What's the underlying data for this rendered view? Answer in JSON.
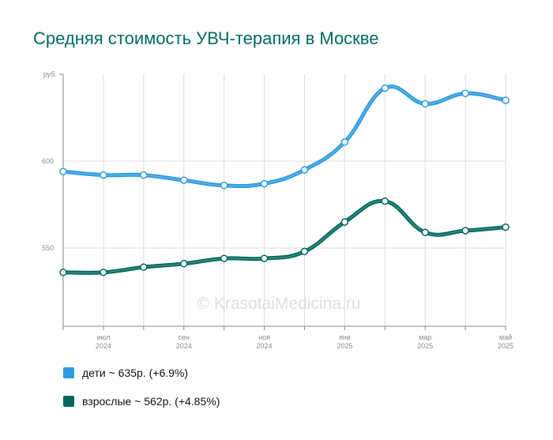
{
  "title": "Средняя стоимость УВЧ-терапия в Москве",
  "watermark": "© KrasotaiMedicina.ru",
  "chart_data": {
    "type": "line",
    "ylabel": "руб.",
    "ylim": [
      505,
      650
    ],
    "yticks": [
      600,
      550
    ],
    "grid": true,
    "legend_position": "bottom-left",
    "x_month_labels": [
      {
        "month": "июл",
        "year": "2024",
        "x": 1
      },
      {
        "month": "сен",
        "year": "2024",
        "x": 3
      },
      {
        "month": "ноя",
        "year": "2024",
        "x": 5
      },
      {
        "month": "янв",
        "year": "2025",
        "x": 7
      },
      {
        "month": "мар",
        "year": "2025",
        "x": 9
      },
      {
        "month": "май",
        "year": "2025",
        "x": 11
      }
    ],
    "x": [
      0,
      1,
      2,
      3,
      4,
      5,
      6,
      7,
      8,
      9,
      10,
      11
    ],
    "series": [
      {
        "name": "дети",
        "color": "#2d9be0",
        "values": [
          594,
          592,
          592,
          589,
          586,
          587,
          595,
          611,
          642,
          633,
          639,
          635
        ]
      },
      {
        "name": "взрослые",
        "color": "#00695c",
        "values": [
          536,
          536,
          539,
          541,
          544,
          544,
          548,
          565,
          577,
          559,
          560,
          562
        ]
      }
    ]
  },
  "legend": [
    {
      "label": "дети ~ 635р. (+6.9%)",
      "color": "#2d9be0"
    },
    {
      "label": "взрослые ~ 562р. (+4.85%)",
      "color": "#00695c"
    }
  ]
}
